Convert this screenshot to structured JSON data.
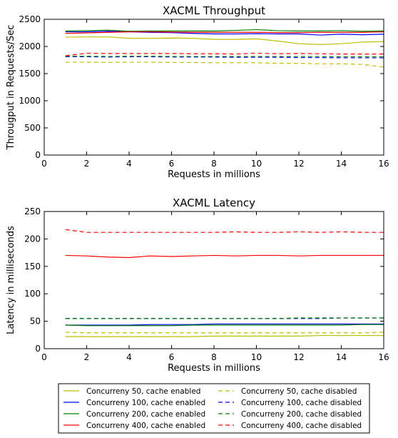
{
  "chart_data": [
    {
      "type": "line",
      "title": "XACML Throughput",
      "xlabel": "Requests in millions",
      "ylabel": "Througput in Requests/Sec",
      "xlim": [
        0,
        16
      ],
      "ylim": [
        0,
        2500
      ],
      "xticks": [
        0,
        2,
        4,
        6,
        8,
        10,
        12,
        14,
        16
      ],
      "yticks": [
        0,
        500,
        1000,
        1500,
        2000,
        2500
      ],
      "grid": false,
      "x": [
        1,
        2,
        3,
        4,
        5,
        6,
        7,
        8,
        9,
        10,
        11,
        12,
        13,
        14,
        15,
        16
      ],
      "series": [
        {
          "name": "Concurreny 50, cache enabled",
          "color": "#bfbf00",
          "style": "solid",
          "values": [
            2170,
            2175,
            2175,
            2150,
            2150,
            2155,
            2150,
            2130,
            2130,
            2140,
            2100,
            2050,
            2035,
            2050,
            2080,
            2090
          ]
        },
        {
          "name": "Concurreny 100, cache enabled",
          "color": "#0000ff",
          "style": "solid",
          "values": [
            2270,
            2270,
            2280,
            2270,
            2260,
            2255,
            2240,
            2230,
            2230,
            2235,
            2230,
            2230,
            2210,
            2225,
            2215,
            2225
          ]
        },
        {
          "name": "Concurreny 200, cache enabled",
          "color": "#008000",
          "style": "solid",
          "values": [
            2285,
            2290,
            2300,
            2280,
            2285,
            2285,
            2285,
            2285,
            2295,
            2310,
            2290,
            2285,
            2285,
            2290,
            2280,
            2285
          ]
        },
        {
          "name": "Concurreny 400, cache enabled",
          "color": "#ff0000",
          "style": "solid",
          "values": [
            2240,
            2250,
            2260,
            2270,
            2270,
            2265,
            2260,
            2260,
            2260,
            2260,
            2255,
            2255,
            2260,
            2260,
            2260,
            2270
          ]
        },
        {
          "name": "Concurreny 50, cache disabled",
          "color": "#bfbf00",
          "style": "dashed",
          "values": [
            1710,
            1710,
            1705,
            1710,
            1710,
            1705,
            1705,
            1700,
            1700,
            1700,
            1690,
            1690,
            1680,
            1680,
            1670,
            1620
          ]
        },
        {
          "name": "Concurreny 100, cache disabled",
          "color": "#0000ff",
          "style": "dashed",
          "values": [
            1810,
            1810,
            1805,
            1810,
            1810,
            1805,
            1805,
            1805,
            1800,
            1800,
            1800,
            1795,
            1795,
            1790,
            1790,
            1790
          ]
        },
        {
          "name": "Concurreny 200, cache disabled",
          "color": "#008000",
          "style": "dashed",
          "values": [
            1820,
            1820,
            1815,
            1820,
            1820,
            1815,
            1815,
            1815,
            1815,
            1815,
            1815,
            1815,
            1815,
            1810,
            1810,
            1810
          ]
        },
        {
          "name": "Concurreny 400, cache disabled",
          "color": "#ff0000",
          "style": "dashed",
          "values": [
            1830,
            1875,
            1870,
            1870,
            1870,
            1870,
            1865,
            1865,
            1860,
            1875,
            1865,
            1870,
            1865,
            1860,
            1860,
            1860
          ]
        }
      ]
    },
    {
      "type": "line",
      "title": "XACML Latency",
      "xlabel": "Requests in millions",
      "ylabel": "Latency in milliseconds",
      "xlim": [
        0,
        16
      ],
      "ylim": [
        0,
        250
      ],
      "xticks": [
        0,
        2,
        4,
        6,
        8,
        10,
        12,
        14,
        16
      ],
      "yticks": [
        0,
        50,
        100,
        150,
        200,
        250
      ],
      "grid": false,
      "x": [
        1,
        2,
        3,
        4,
        5,
        6,
        7,
        8,
        9,
        10,
        11,
        12,
        13,
        14,
        15,
        16
      ],
      "series": [
        {
          "name": "Concurreny 50, cache enabled",
          "color": "#bfbf00",
          "style": "solid",
          "values": [
            22,
            22,
            22,
            22,
            22,
            22,
            22,
            23,
            23,
            23,
            23,
            23,
            24,
            24,
            24,
            24
          ]
        },
        {
          "name": "Concurreny 100, cache enabled",
          "color": "#0000ff",
          "style": "solid",
          "values": [
            43,
            43,
            43,
            43,
            44,
            44,
            44,
            45,
            45,
            45,
            45,
            45,
            45,
            45,
            45,
            45
          ]
        },
        {
          "name": "Concurreny 200, cache enabled",
          "color": "#008000",
          "style": "solid",
          "values": [
            43,
            42,
            42,
            42,
            42,
            42,
            43,
            43,
            43,
            43,
            43,
            43,
            43,
            43,
            44,
            44
          ]
        },
        {
          "name": "Concurreny 400, cache enabled",
          "color": "#ff0000",
          "style": "solid",
          "values": [
            170,
            169,
            167,
            166,
            169,
            168,
            169,
            170,
            169,
            170,
            170,
            169,
            170,
            170,
            170,
            170
          ]
        },
        {
          "name": "Concurreny 50, cache disabled",
          "color": "#bfbf00",
          "style": "dashed",
          "values": [
            30,
            29,
            29,
            29,
            29,
            29,
            29,
            29,
            29,
            29,
            29,
            29,
            29,
            29,
            29,
            30
          ]
        },
        {
          "name": "Concurreny 100, cache disabled",
          "color": "#0000ff",
          "style": "dashed",
          "values": [
            55,
            55,
            55,
            55,
            55,
            55,
            55,
            55,
            55,
            55,
            55,
            55,
            55,
            56,
            56,
            56
          ]
        },
        {
          "name": "Concurreny 200, cache disabled",
          "color": "#008000",
          "style": "dashed",
          "values": [
            55,
            55,
            55,
            55,
            55,
            55,
            55,
            55,
            55,
            55,
            55,
            56,
            56,
            56,
            56,
            56
          ]
        },
        {
          "name": "Concurreny 400, cache disabled",
          "color": "#ff0000",
          "style": "dashed",
          "values": [
            217,
            212,
            212,
            212,
            212,
            212,
            212,
            212,
            213,
            212,
            212,
            213,
            212,
            213,
            212,
            212
          ]
        }
      ]
    }
  ],
  "legend": {
    "placement": "bottom",
    "entries": [
      {
        "label": "Concurreny 50, cache enabled",
        "color": "#bfbf00",
        "style": "solid"
      },
      {
        "label": "Concurreny 50, cache disabled",
        "color": "#bfbf00",
        "style": "dashed"
      },
      {
        "label": "Concurreny 100, cache enabled",
        "color": "#0000ff",
        "style": "solid"
      },
      {
        "label": "Concurreny 100, cache disabled",
        "color": "#0000ff",
        "style": "dashed"
      },
      {
        "label": "Concurreny 200, cache enabled",
        "color": "#008000",
        "style": "solid"
      },
      {
        "label": "Concurreny 200, cache disabled",
        "color": "#008000",
        "style": "dashed"
      },
      {
        "label": "Concurreny 400, cache enabled",
        "color": "#ff0000",
        "style": "solid"
      },
      {
        "label": "Concurreny 400, cache disabled",
        "color": "#ff0000",
        "style": "dashed"
      }
    ]
  }
}
